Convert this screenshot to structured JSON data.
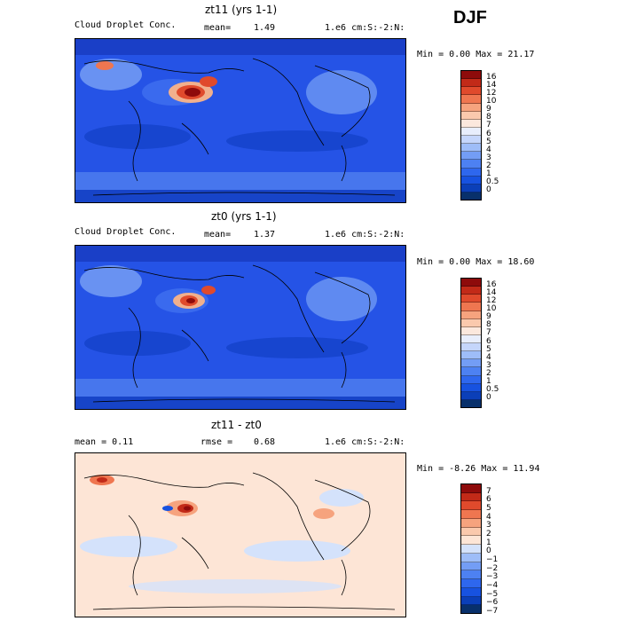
{
  "season": "DJF",
  "colors": {
    "abs": [
      "#08306b",
      "#0b3fb8",
      "#1752e0",
      "#2e67ee",
      "#4d81f2",
      "#739df5",
      "#9ebdf8",
      "#c5d6fb",
      "#e8eefc",
      "#fbe8dd",
      "#fac9ad",
      "#f6a37e",
      "#ef7650",
      "#e04a2c",
      "#c22a18",
      "#8e0b0b"
    ],
    "diff": [
      "#08306b",
      "#0b3fb8",
      "#1752e0",
      "#2e67ee",
      "#4d81f2",
      "#739df5",
      "#9ebdf8",
      "#d4e2fb",
      "#fde5d6",
      "#fac9ad",
      "#f6a37e",
      "#ef7650",
      "#e04a2c",
      "#c22a18",
      "#8e0b0b"
    ]
  },
  "panels": [
    {
      "title": "zt11 (yrs 1-1)",
      "left_label": "Cloud Droplet Conc.",
      "mean_label": "mean=",
      "mean_value": "1.49",
      "units": "1.e6 cm:S:-2:N:",
      "minmax": "Min =   0.00 Max =  21.17",
      "ticks": [
        "16",
        "14",
        "12",
        "10",
        "9",
        "8",
        "7",
        "6",
        "5",
        "4",
        "3",
        "2",
        "1",
        "0.5",
        "0"
      ]
    },
    {
      "title": "zt0 (yrs 1-1)",
      "left_label": "Cloud Droplet Conc.",
      "mean_label": "mean=",
      "mean_value": "1.37",
      "units": "1.e6 cm:S:-2:N:",
      "minmax": "Min =   0.00 Max =  18.60",
      "ticks": [
        "16",
        "14",
        "12",
        "10",
        "9",
        "8",
        "7",
        "6",
        "5",
        "4",
        "3",
        "2",
        "1",
        "0.5",
        "0"
      ]
    },
    {
      "title": "zt11 - zt0",
      "left_label": "mean =    0.11",
      "mean_label": "rmse =",
      "mean_value": "0.68",
      "units": "1.e6 cm:S:-2:N:",
      "minmax": "Min =  -8.26 Max =  11.94",
      "ticks": [
        "7",
        "6",
        "5",
        "4",
        "3",
        "2",
        "1",
        "0",
        "−1",
        "−2",
        "−3",
        "−4",
        "−5",
        "−6",
        "−7"
      ]
    }
  ]
}
